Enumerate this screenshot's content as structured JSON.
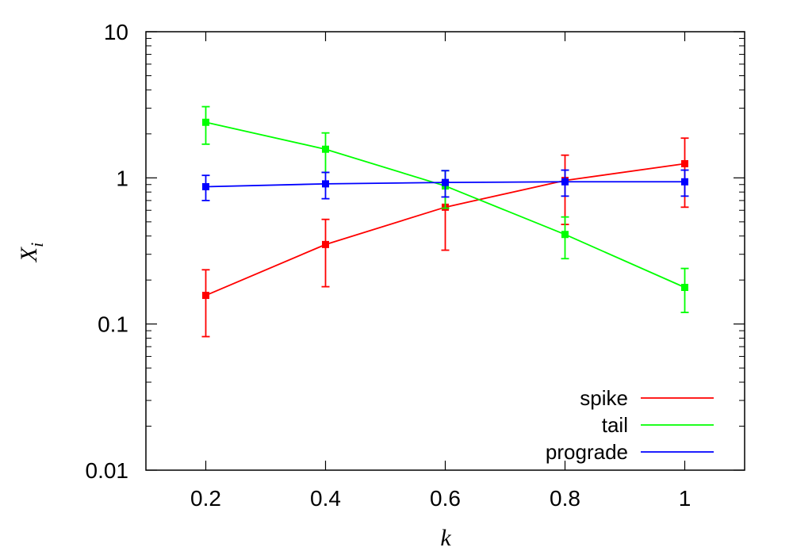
{
  "chart_data": {
    "type": "line",
    "title": "",
    "xlabel": "k",
    "ylabel": "X_i",
    "ylabel_main": "X",
    "ylabel_sub": "i",
    "x": [
      0.2,
      0.4,
      0.6,
      0.8,
      1.0
    ],
    "xlim": [
      0.1,
      1.1
    ],
    "ylim": [
      0.01,
      10
    ],
    "yscale": "log",
    "x_ticks": [
      0.2,
      0.4,
      0.6,
      0.8,
      1.0
    ],
    "x_tick_labels": [
      "0.2",
      "0.4",
      "0.6",
      "0.8",
      "1"
    ],
    "y_ticks": [
      0.01,
      0.1,
      1,
      10
    ],
    "y_tick_labels": [
      "0.01",
      "0.1",
      "1",
      "10"
    ],
    "grid": false,
    "legend_position": "bottom-right",
    "series": [
      {
        "name": "spike",
        "color": "#ff0000",
        "values": [
          0.157,
          0.35,
          0.63,
          0.96,
          1.25
        ],
        "err_low": [
          0.082,
          0.18,
          0.32,
          0.48,
          0.63
        ],
        "err_high": [
          0.235,
          0.52,
          0.94,
          1.43,
          1.87
        ]
      },
      {
        "name": "tail",
        "color": "#00ff00",
        "values": [
          2.4,
          1.57,
          0.88,
          0.41,
          0.178
        ],
        "err_low": [
          1.7,
          1.09,
          0.62,
          0.28,
          0.12
        ],
        "err_high": [
          3.07,
          2.03,
          1.12,
          0.54,
          0.24
        ]
      },
      {
        "name": "prograde",
        "color": "#0000ff",
        "values": [
          0.87,
          0.91,
          0.93,
          0.94,
          0.94
        ],
        "err_low": [
          0.7,
          0.72,
          0.74,
          0.75,
          0.75
        ],
        "err_high": [
          1.04,
          1.09,
          1.12,
          1.13,
          1.13
        ]
      }
    ]
  }
}
